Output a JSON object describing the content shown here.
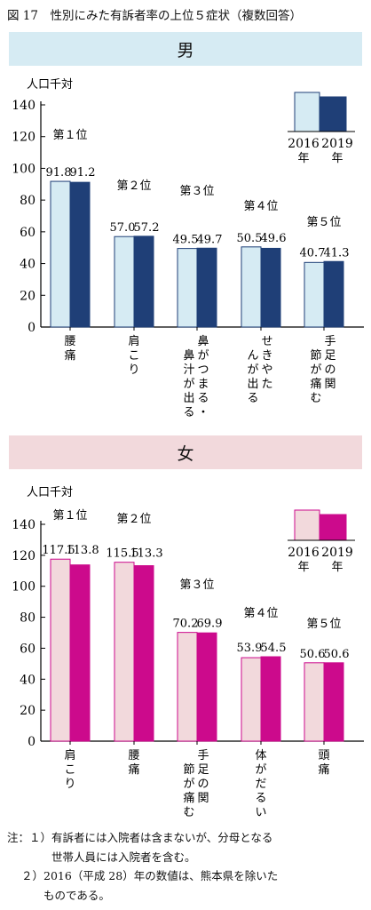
{
  "figure_title": "図 17　性別にみた有訴者率の上位５症状（複数回答）",
  "chart_data": [
    {
      "type": "bar",
      "title": "男",
      "ylabel": "人口千対",
      "ylim": [
        0,
        140
      ],
      "yticks": [
        0,
        20,
        40,
        60,
        80,
        100,
        120,
        140
      ],
      "grid": false,
      "legend_position": "top-right",
      "colors": [
        "#d6ebf3",
        "#1f3f77"
      ],
      "ranks": [
        "第１位",
        "第２位",
        "第３位",
        "第４位",
        "第５位"
      ],
      "categories": [
        "腰痛",
        "肩こり",
        "鼻がつまる・鼻汁が出る",
        "せきやたんが出る",
        "手足の関節が痛む"
      ],
      "category_lines": [
        [
          "腰",
          "痛"
        ],
        [
          "肩",
          "こ",
          "り"
        ],
        [
          "鼻",
          "が",
          "つ",
          "ま",
          "る",
          "・",
          "鼻",
          "汁",
          "が",
          "出",
          "る"
        ],
        [
          "せ",
          "き",
          "や",
          "た",
          "ん",
          "が",
          "出",
          "る"
        ],
        [
          "手",
          "足",
          "の",
          "関",
          "節",
          "が",
          "痛",
          "む"
        ]
      ],
      "series": [
        {
          "name": "2016年",
          "values": [
            91.8,
            57.0,
            49.5,
            50.5,
            40.7
          ],
          "labels": [
            "91.8",
            "57.0",
            "49.5",
            "50.5",
            "40.7"
          ]
        },
        {
          "name": "2019年",
          "values": [
            91.2,
            57.2,
            49.7,
            49.6,
            41.3
          ],
          "labels": [
            "91.2",
            "57.2",
            "49.7",
            "49.6",
            "41.3"
          ]
        }
      ],
      "legend": [
        {
          "year": "2016",
          "suffix": "年"
        },
        {
          "year": "2019",
          "suffix": "年"
        }
      ]
    },
    {
      "type": "bar",
      "title": "女",
      "ylabel": "人口千対",
      "ylim": [
        0,
        140
      ],
      "yticks": [
        0,
        20,
        40,
        60,
        80,
        100,
        120,
        140
      ],
      "grid": false,
      "legend_position": "top-right",
      "colors": [
        "#f2d9dc",
        "#cc0a8c"
      ],
      "ranks": [
        "第１位",
        "第２位",
        "第３位",
        "第４位",
        "第５位"
      ],
      "categories": [
        "肩こり",
        "腰痛",
        "手足の関節が痛む",
        "体がだるい",
        "頭痛"
      ],
      "category_lines": [
        [
          "肩",
          "こ",
          "り"
        ],
        [
          "腰",
          "痛"
        ],
        [
          "手",
          "足",
          "の",
          "関",
          "節",
          "が",
          "痛",
          "む"
        ],
        [
          "体",
          "が",
          "だ",
          "る",
          "い"
        ],
        [
          "頭",
          "痛"
        ]
      ],
      "series": [
        {
          "name": "2016年",
          "values": [
            117.5,
            115.5,
            70.2,
            53.9,
            50.6
          ],
          "labels": [
            "117.5",
            "115.5",
            "70.2",
            "53.9",
            "50.6"
          ]
        },
        {
          "name": "2019年",
          "values": [
            113.8,
            113.3,
            69.9,
            54.5,
            50.6
          ],
          "labels": [
            "113.8",
            "113.3",
            "69.9",
            "54.5",
            "50.6"
          ]
        }
      ],
      "legend": [
        {
          "year": "2016",
          "suffix": "年"
        },
        {
          "year": "2019",
          "suffix": "年"
        }
      ]
    }
  ],
  "notes": {
    "line1_prefix": "注：１）",
    "line1_text": "有訴者には入院者は含まないが、分母となる\n世帯人員には入院者を含む。",
    "line2_prefix": "２）",
    "line2_text": "2016（平成 28）年の数値は、熊本県を除いた\nものである。"
  }
}
